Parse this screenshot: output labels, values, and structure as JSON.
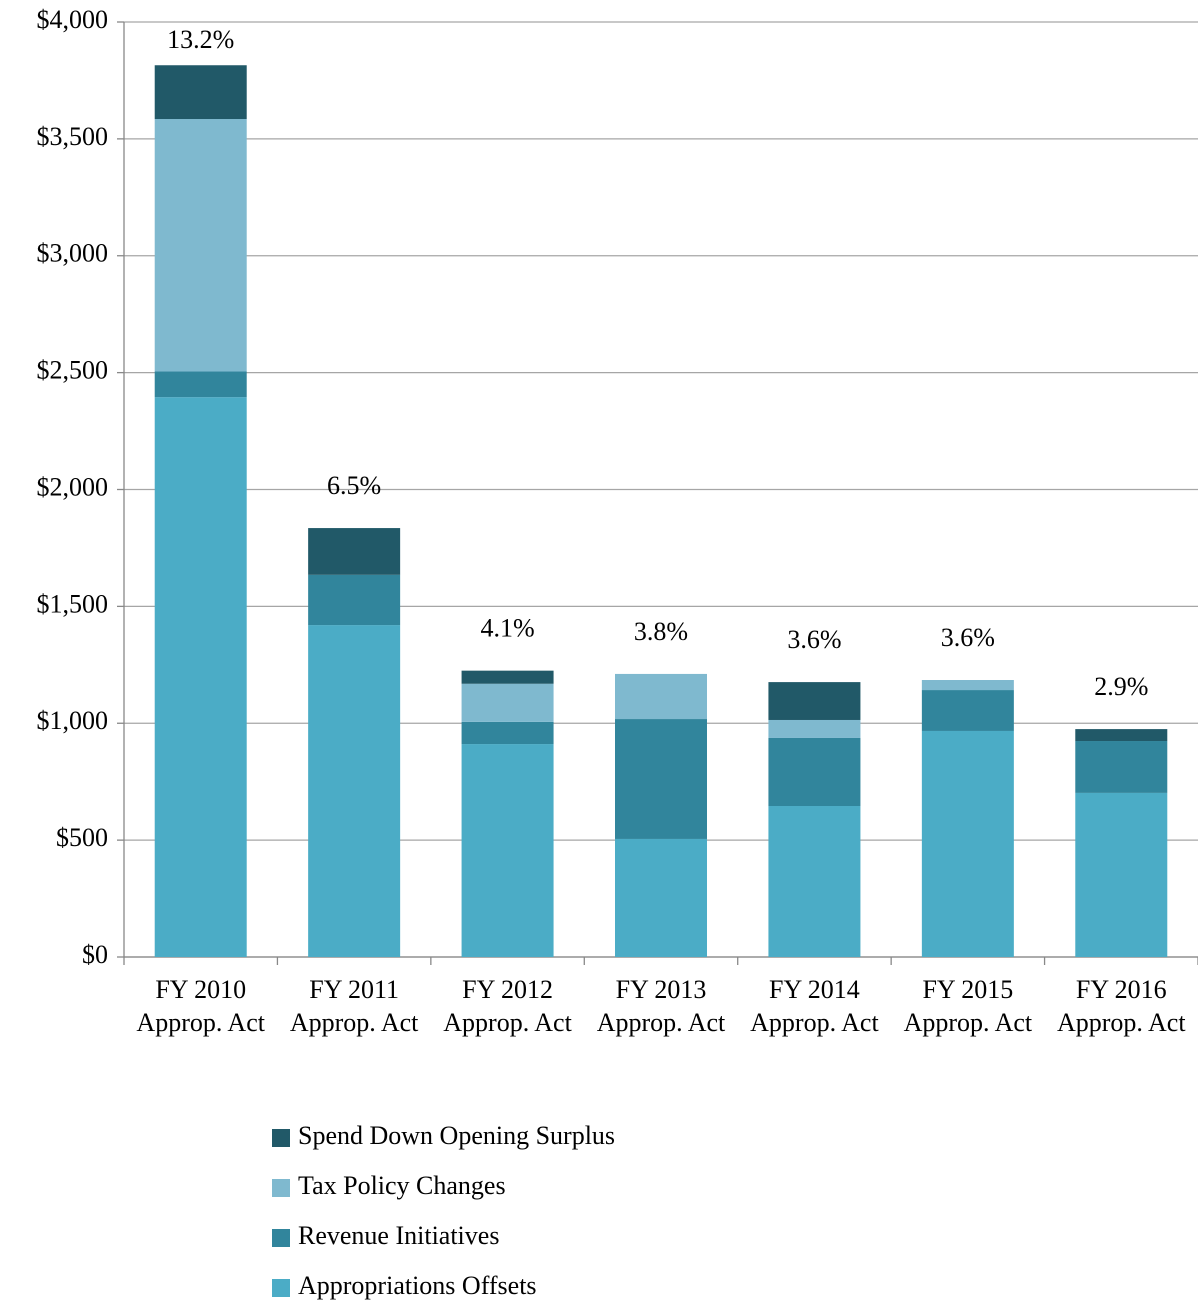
{
  "chart_data": {
    "type": "stacked-bar",
    "categories": [
      "FY 2010 Approp. Act",
      "FY 2011 Approp. Act",
      "FY 2012 Approp. Act",
      "FY 2013 Approp. Act",
      "FY 2014 Approp. Act",
      "FY 2015 Approp. Act",
      "FY 2016 Approp. Act"
    ],
    "series": [
      {
        "name": "Appropriations Offsets",
        "color": "#4bacc6",
        "values": [
          2395,
          1420,
          911,
          505,
          646,
          967,
          702
        ]
      },
      {
        "name": "Revenue Initiatives",
        "color": "#31859c",
        "values": [
          110,
          215,
          95,
          513,
          291,
          175,
          222
        ]
      },
      {
        "name": "Tax Policy Changes",
        "color": "#7fb9cf",
        "values": [
          1080,
          0,
          163,
          193,
          77,
          43,
          0
        ]
      },
      {
        "name": "Spend Down Opening Surplus",
        "color": "#215968",
        "values": [
          230,
          200,
          56,
          0,
          162,
          0,
          51
        ]
      }
    ],
    "annotations": [
      "13.2%",
      "6.5%",
      "4.1%",
      "3.8%",
      "3.6%",
      "3.6%",
      "2.9%"
    ],
    "ylim": [
      0,
      4000
    ],
    "yticks": [
      {
        "value": 0,
        "label": "$0"
      },
      {
        "value": 500,
        "label": "$500"
      },
      {
        "value": 1000,
        "label": "$1,000"
      },
      {
        "value": 1500,
        "label": "$1,500"
      },
      {
        "value": 2000,
        "label": "$2,000"
      },
      {
        "value": 2500,
        "label": "$2,500"
      },
      {
        "value": 3000,
        "label": "$3,000"
      },
      {
        "value": 3500,
        "label": "$3,500"
      },
      {
        "value": 4000,
        "label": "$4,000"
      }
    ],
    "grid": true,
    "legend": "bottom"
  }
}
